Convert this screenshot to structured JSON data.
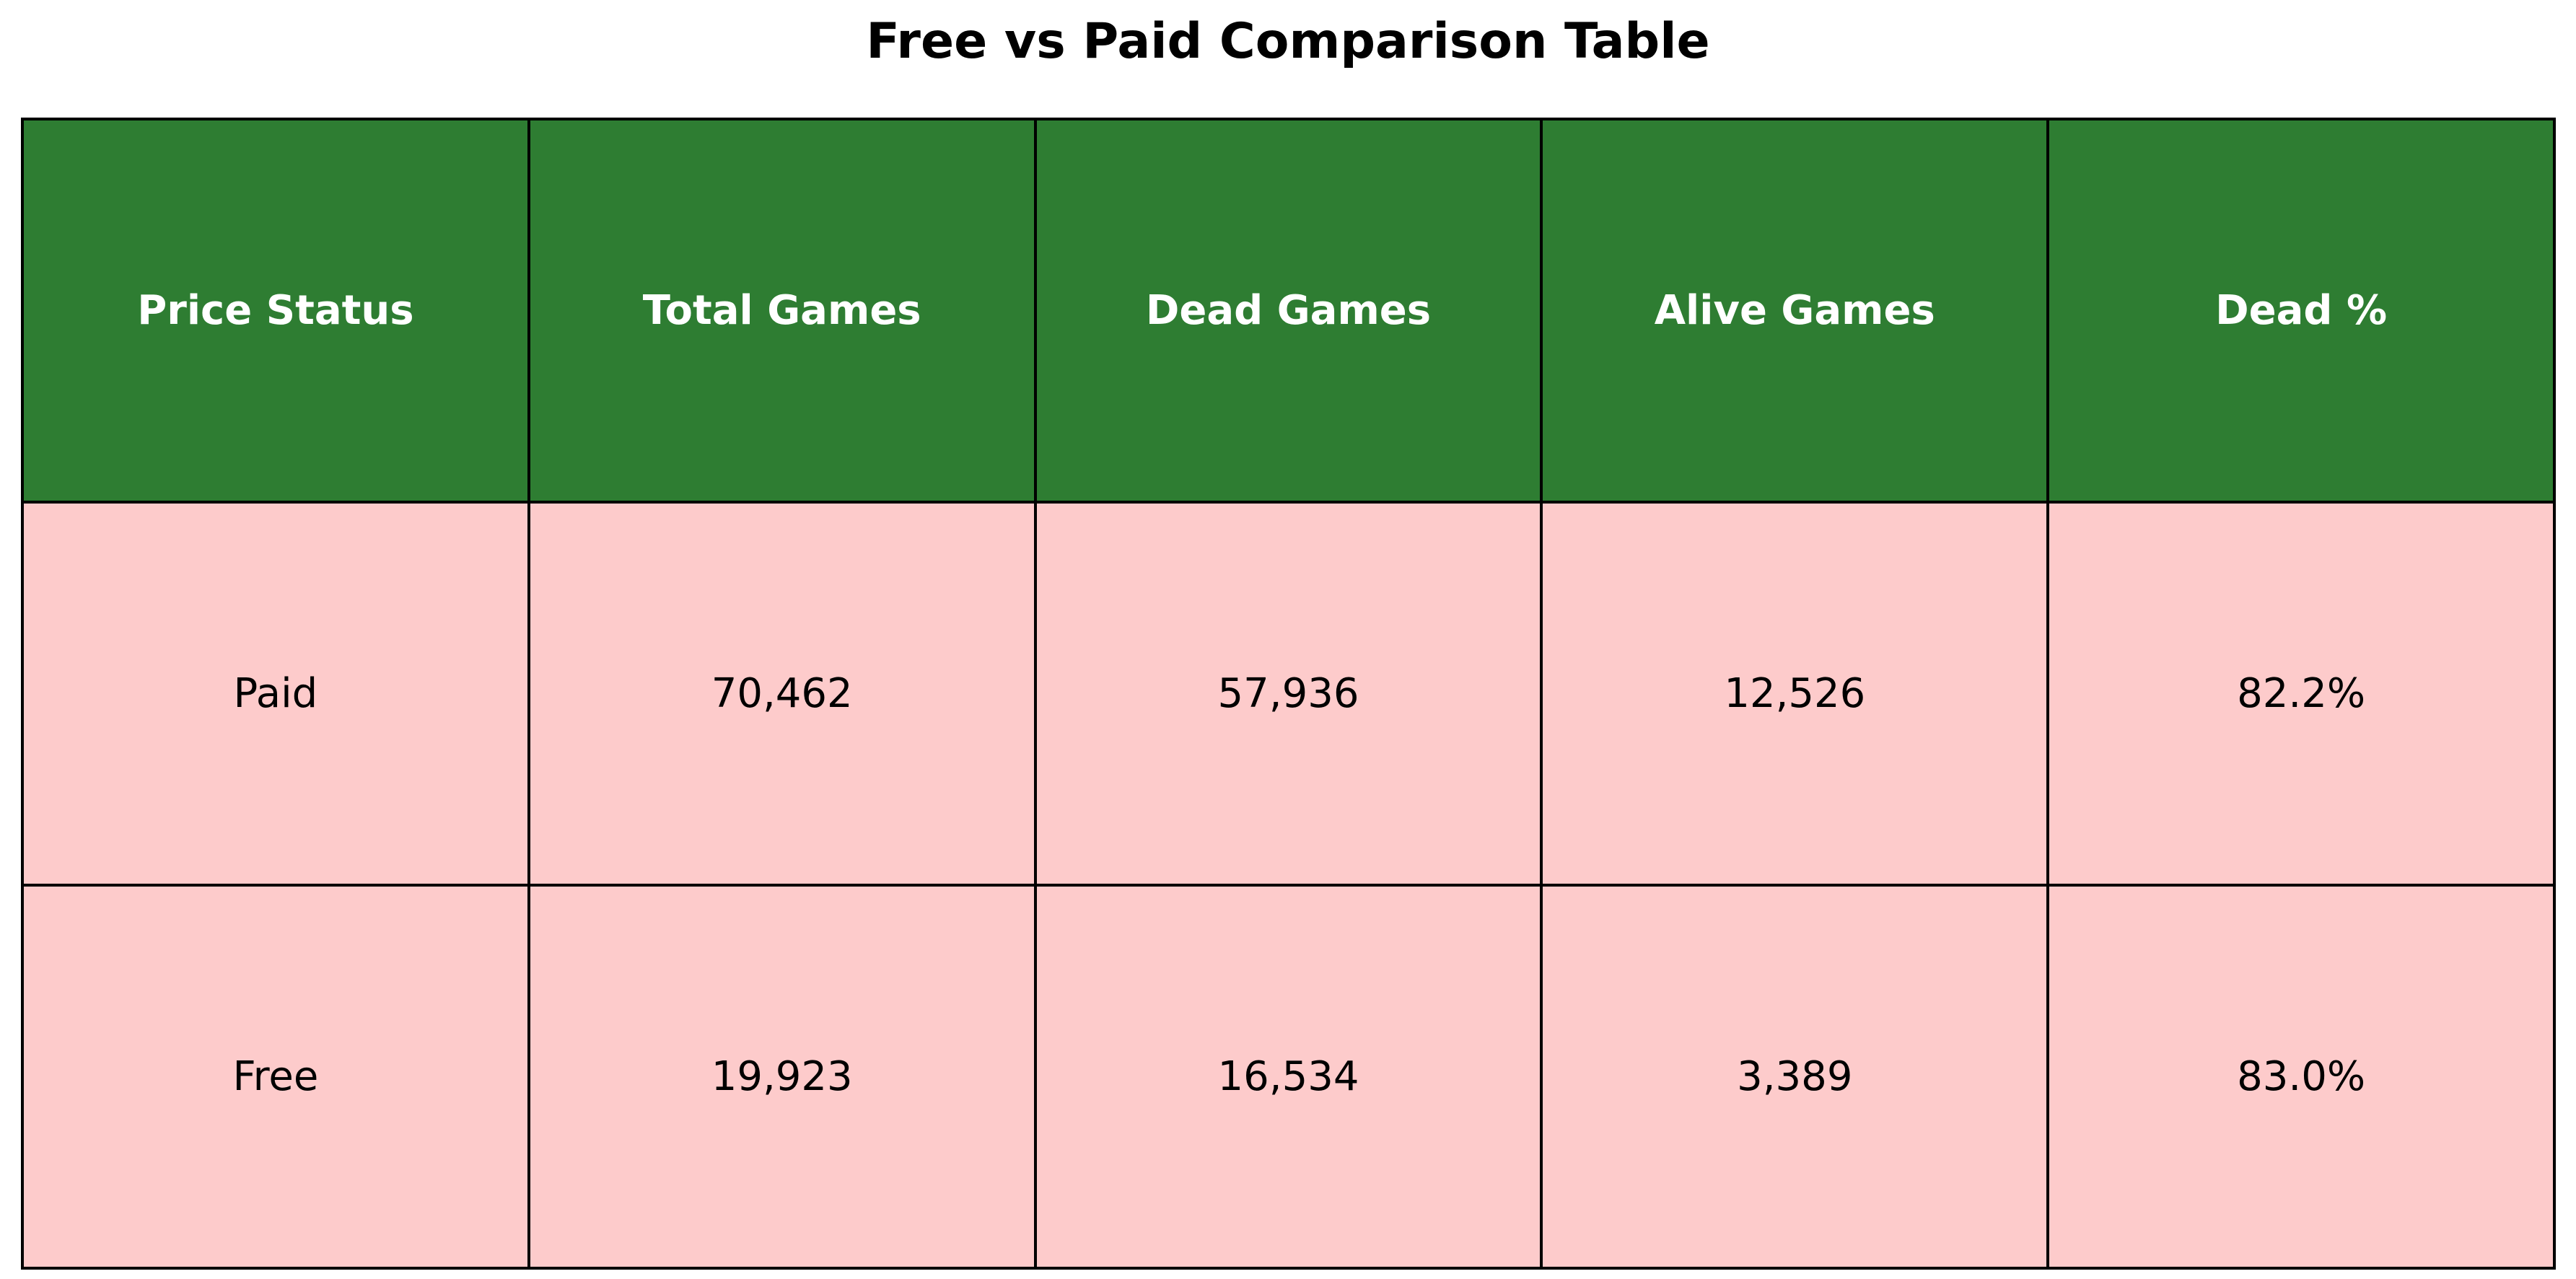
{
  "chart_data": {
    "type": "table",
    "title": "Free vs Paid Comparison Table",
    "columns": [
      "Price Status",
      "Total Games",
      "Dead Games",
      "Alive Games",
      "Dead %"
    ],
    "rows": [
      [
        "Paid",
        "70,462",
        "57,936",
        "12,526",
        "82.2%"
      ],
      [
        "Free",
        "19,923",
        "16,534",
        "3,389",
        "83.0%"
      ]
    ]
  },
  "colors": {
    "header_background": "#2e7d32",
    "header_text": "#ffffff",
    "cell_background": "#fdcbcb",
    "border": "#000000"
  }
}
